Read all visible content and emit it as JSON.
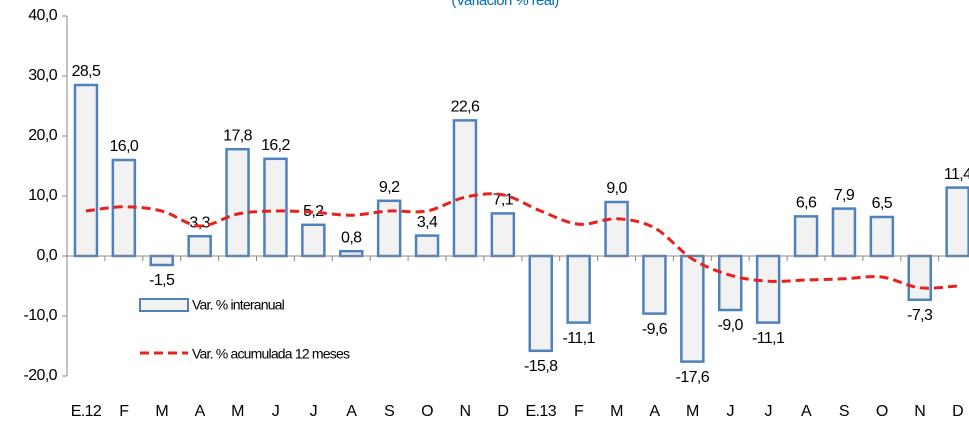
{
  "chart_data": {
    "type": "combo",
    "subtitle": "(Variación % real)",
    "categories": [
      "E.12",
      "F",
      "M",
      "A",
      "M",
      "J",
      "J",
      "A",
      "S",
      "O",
      "N",
      "D",
      "E.13",
      "F",
      "M",
      "A",
      "M",
      "J",
      "J",
      "A",
      "S",
      "O",
      "N",
      "D"
    ],
    "series": [
      {
        "name": "Var. % interanual",
        "type": "bar",
        "color": "#4f81bd",
        "fill": "#f2f2f2",
        "values": [
          28.5,
          16.0,
          -1.5,
          3.3,
          17.8,
          16.2,
          5.2,
          0.8,
          9.2,
          3.4,
          22.6,
          7.1,
          -15.8,
          -11.1,
          9.0,
          -9.6,
          -17.6,
          -9.0,
          -11.1,
          6.6,
          7.9,
          6.5,
          -7.3,
          11.4
        ],
        "value_labels": [
          "28,5",
          "16,0",
          "-1,5",
          "3,3",
          "17,8",
          "16,2",
          "5,2",
          "0,8",
          "9,2",
          "3,4",
          "22,6",
          "7,1",
          "-15,8",
          "-11,1",
          "9,0",
          "-9,6",
          "-17,6",
          "-9,0",
          "-11,1",
          "6,6",
          "7,9",
          "6,5",
          "-7,3",
          "11,4"
        ]
      },
      {
        "name": "Var. % acumulada 12 meses",
        "type": "line",
        "color": "#e8211d",
        "values": [
          7.5,
          8.2,
          7.5,
          5.0,
          7.0,
          7.5,
          7.3,
          6.8,
          7.5,
          7.5,
          9.8,
          10.2,
          7.5,
          5.3,
          6.2,
          4.7,
          -0.5,
          -3.2,
          -4.2,
          -4.0,
          -3.8,
          -3.5,
          -5.3,
          -5.0
        ]
      }
    ],
    "ylim": [
      -20,
      40
    ],
    "yticks": [
      {
        "value": -20,
        "label": "-20,0"
      },
      {
        "value": -10,
        "label": "-10,0"
      },
      {
        "value": 0,
        "label": "0,0"
      },
      {
        "value": 10,
        "label": "10,0"
      },
      {
        "value": 20,
        "label": "20,0"
      },
      {
        "value": 30,
        "label": "30,0"
      },
      {
        "value": 40,
        "label": "40,0"
      }
    ]
  }
}
